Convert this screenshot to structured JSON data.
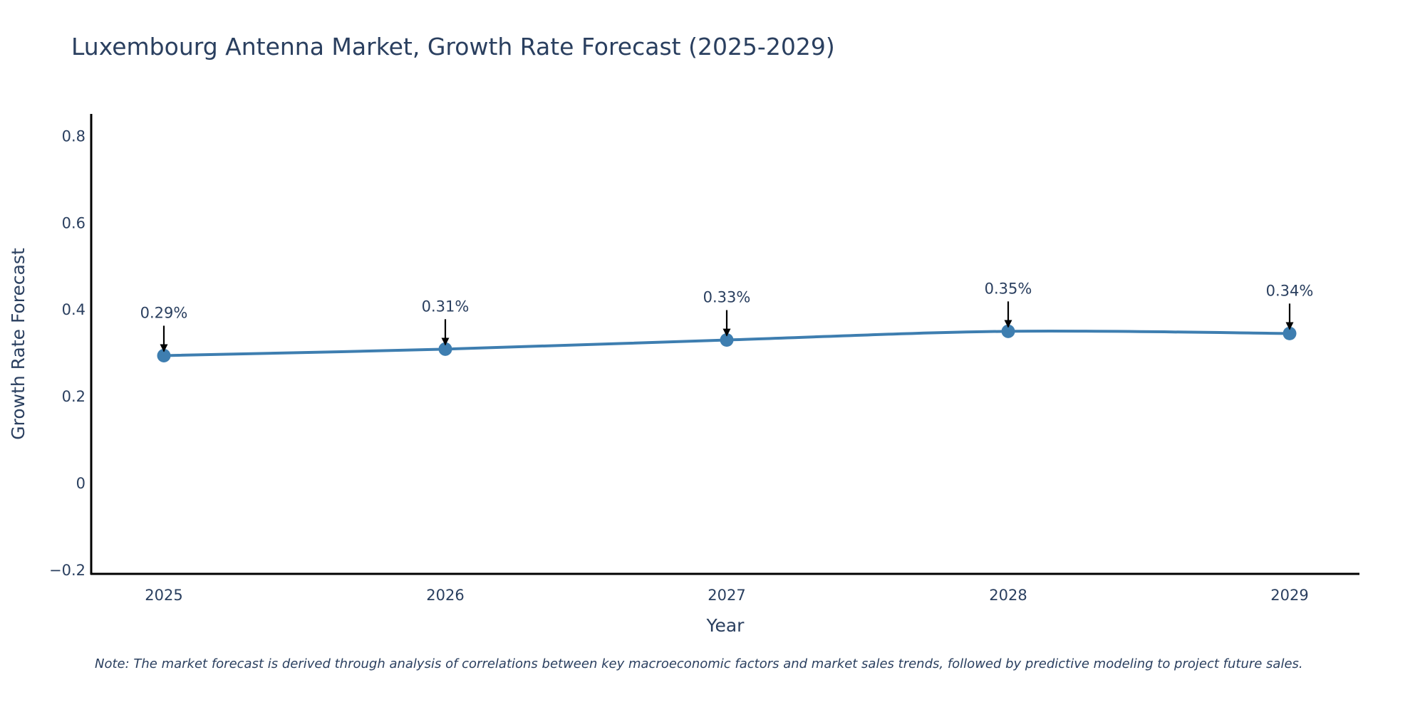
{
  "chart_data": {
    "type": "line",
    "title": "Luxembourg Antenna Market, Growth Rate Forecast (2025-2029)",
    "xlabel": "Year",
    "ylabel": "Growth Rate Forecast",
    "categories": [
      "2025",
      "2026",
      "2027",
      "2028",
      "2029"
    ],
    "values": [
      0.293,
      0.308,
      0.329,
      0.349,
      0.344
    ],
    "data_labels": [
      "0.29%",
      "0.31%",
      "0.33%",
      "0.35%",
      "0.34%"
    ],
    "ylim": [
      -0.21,
      0.85
    ],
    "yticks": [
      -0.2,
      0,
      0.2,
      0.4,
      0.6,
      0.8
    ],
    "ytick_labels": [
      "−0.2",
      "0",
      "0.2",
      "0.4",
      "0.6",
      "0.8"
    ],
    "grid": false,
    "line_shape": "spline",
    "colors": {
      "line": "#3e7eb0",
      "marker": "#3e7eb0",
      "text": "#2a3f5f",
      "axis": "#000000",
      "arrow": "#000000"
    }
  },
  "footer": {
    "note": "Note: The market forecast is derived through analysis of correlations between key macroeconomic factors and market sales trends, followed by predictive modeling to project future sales."
  }
}
